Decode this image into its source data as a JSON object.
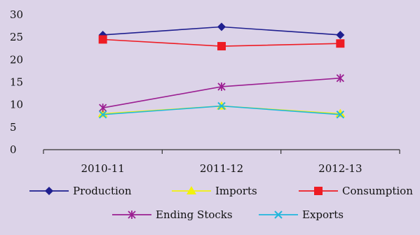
{
  "colors": {
    "background": "#dcd3e8",
    "axis": "#333333"
  },
  "chart_data": {
    "type": "line",
    "categories": [
      "2010-11",
      "2011-12",
      "2012-13"
    ],
    "ylim": [
      0,
      30
    ],
    "yticks": [
      "0",
      "5",
      "10",
      "15",
      "20",
      "25",
      "30"
    ],
    "grid": false,
    "legend_position": "bottom",
    "series": [
      {
        "name": "Production",
        "values": [
          25.5,
          27.3,
          25.5
        ],
        "color": "#1f1f8f",
        "marker": "diamond"
      },
      {
        "name": "Imports",
        "values": [
          8.0,
          9.7,
          8.0
        ],
        "color": "#f2f20a",
        "marker": "triangle"
      },
      {
        "name": "Consumption",
        "values": [
          24.5,
          23.0,
          23.6
        ],
        "color": "#ee1c24",
        "marker": "square"
      },
      {
        "name": "Ending Stocks",
        "values": [
          9.3,
          14.0,
          15.9
        ],
        "color": "#9b1f92",
        "marker": "asterisk"
      },
      {
        "name": "Exports",
        "values": [
          7.8,
          9.7,
          7.8
        ],
        "color": "#22b7dc",
        "marker": "x"
      }
    ]
  }
}
